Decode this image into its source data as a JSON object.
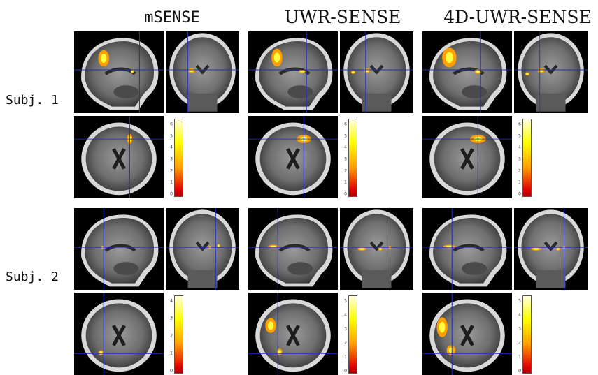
{
  "columns": [
    {
      "title": "mSENSE"
    },
    {
      "title": "UWR-SENSE"
    },
    {
      "title": "4D-UWR-SENSE"
    }
  ],
  "rows": [
    {
      "label": "Subj. 1"
    },
    {
      "label": "Subj. 2"
    }
  ],
  "colorbars": [
    {
      "ticks": [
        "6",
        "5",
        "4",
        "3",
        "2",
        "1",
        "0"
      ]
    },
    {
      "ticks": [
        "6",
        "5",
        "4",
        "3",
        "2",
        "1",
        "0"
      ]
    },
    {
      "ticks": [
        "6",
        "5",
        "4",
        "3",
        "2",
        "1",
        "0"
      ]
    },
    {
      "ticks": [
        "4",
        "3",
        "2",
        "1",
        "0"
      ]
    },
    {
      "ticks": [
        "5",
        "4",
        "3",
        "2",
        "1",
        "0"
      ]
    },
    {
      "ticks": [
        "5",
        "4",
        "3",
        "2",
        "1",
        "0"
      ]
    }
  ],
  "colors": {
    "crosshair": "#2030c0",
    "activation_high": "#ffff40",
    "activation_mid": "#ffa000",
    "colorbar_low": "#b00000",
    "colorbar_high": "#ffffe0"
  }
}
